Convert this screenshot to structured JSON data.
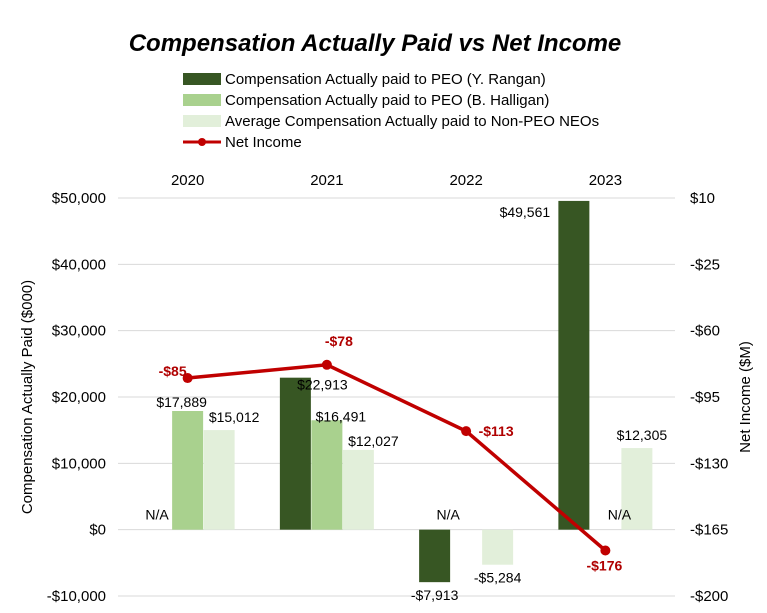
{
  "chart_data": {
    "type": "bar",
    "title": "Compensation Actually Paid vs Net Income",
    "categories": [
      "2020",
      "2021",
      "2022",
      "2023"
    ],
    "ylabel": "Compensation Actually Paid ($000)",
    "y2label": "Net Income ($M)",
    "ylim": [
      -10000,
      50000
    ],
    "y2lim": [
      -200,
      10
    ],
    "yticks": [
      -10000,
      0,
      10000,
      20000,
      30000,
      40000,
      50000
    ],
    "yticks_labels": [
      "-$10,000",
      "$0",
      "$10,000",
      "$20,000",
      "$30,000",
      "$40,000",
      "$50,000"
    ],
    "y2ticks": [
      -200,
      -165,
      -130,
      -95,
      -60,
      -25,
      10
    ],
    "y2ticks_labels": [
      "-$200",
      "-$165",
      "-$130",
      "-$95",
      "-$60",
      "-$25",
      "$10"
    ],
    "grid": true,
    "legend_position": "top",
    "series": [
      {
        "name": "Compensation Actually paid to PEO (Y. Rangan)",
        "type": "bar",
        "color": "#375623",
        "values": [
          null,
          22913,
          -7913,
          49561
        ],
        "labels": [
          "N/A",
          "$22,913",
          "-$7,913",
          "$49,561"
        ]
      },
      {
        "name": "Compensation Actually paid to PEO (B. Halligan)",
        "type": "bar",
        "color": "#a9d18e",
        "values": [
          17889,
          16491,
          null,
          null
        ],
        "labels": [
          "$17,889",
          "$16,491",
          "N/A",
          "N/A"
        ]
      },
      {
        "name": "Average Compensation Actually paid to Non-PEO NEOs",
        "type": "bar",
        "color": "#e2efda",
        "values": [
          15012,
          12027,
          -5284,
          12305
        ],
        "labels": [
          "$15,012",
          "$12,027",
          "-$5,284",
          "$12,305"
        ]
      },
      {
        "name": "Net Income",
        "type": "line",
        "axis": "right",
        "color": "#c00000",
        "values": [
          -85,
          -78,
          -113,
          -176
        ],
        "labels": [
          "-$85",
          "-$78",
          "-$113",
          "-$176"
        ]
      }
    ]
  }
}
